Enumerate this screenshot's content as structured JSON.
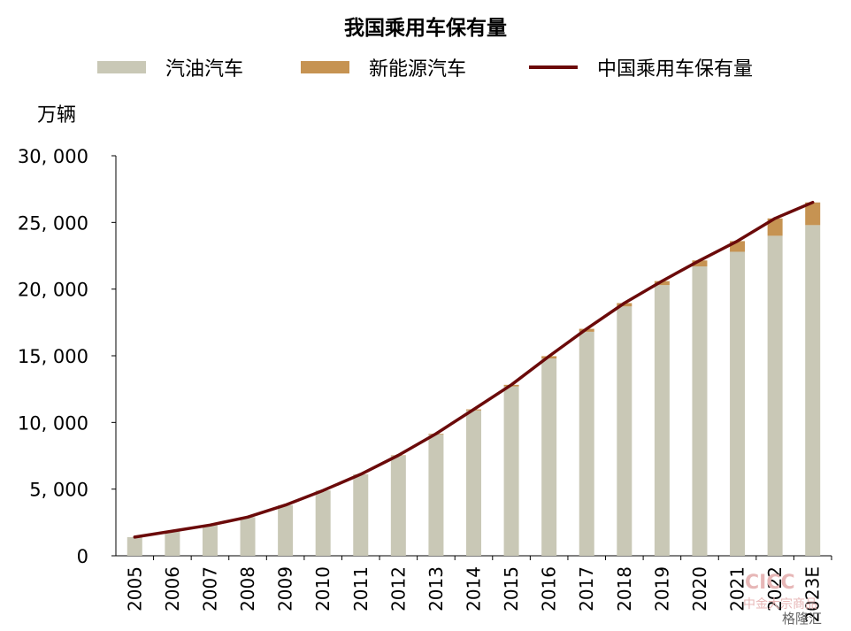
{
  "title": "我国乘用车保有量",
  "unit_label": "万辆",
  "legend": {
    "gasoline": "汽油汽车",
    "nev": "新能源汽车",
    "total": "中国乘用车保有量"
  },
  "colors": {
    "gasoline": "#c9c8b6",
    "nev": "#c69352",
    "total": "#6b0a0a"
  },
  "watermark": {
    "brand": "CICC",
    "subtitle": "中金大宗商品",
    "corner": "格隆汇"
  },
  "chart_data": {
    "type": "bar",
    "stacked": true,
    "categories": [
      "2005",
      "2006",
      "2007",
      "2008",
      "2009",
      "2010",
      "2011",
      "2012",
      "2013",
      "2014",
      "2015",
      "2016",
      "2017",
      "2018",
      "2019",
      "2020",
      "2021",
      "2022",
      "2023E"
    ],
    "series": [
      {
        "name": "汽油汽车",
        "type": "bar",
        "values": [
          1400,
          1850,
          2300,
          2900,
          3800,
          4900,
          6100,
          7500,
          9100,
          10900,
          12700,
          14800,
          16800,
          18700,
          20300,
          21700,
          22800,
          24000,
          24800
        ]
      },
      {
        "name": "新能源汽车",
        "type": "bar",
        "values": [
          0,
          0,
          0,
          0,
          0,
          0,
          10,
          30,
          50,
          80,
          120,
          170,
          220,
          250,
          300,
          450,
          800,
          1300,
          1700
        ]
      },
      {
        "name": "中国乘用车保有量",
        "type": "line",
        "values": [
          1400,
          1850,
          2300,
          2900,
          3800,
          4900,
          6110,
          7530,
          9150,
          10980,
          12820,
          14970,
          17020,
          18950,
          20600,
          22150,
          23600,
          25300,
          26500
        ]
      }
    ],
    "y_ticks": [
      "0",
      "5, 000",
      "10, 000",
      "15, 000",
      "20, 000",
      "25, 000",
      "30, 000"
    ],
    "ylim": [
      0,
      30000
    ],
    "ylabel": "万辆",
    "xlabel": "",
    "legend_position": "top"
  }
}
